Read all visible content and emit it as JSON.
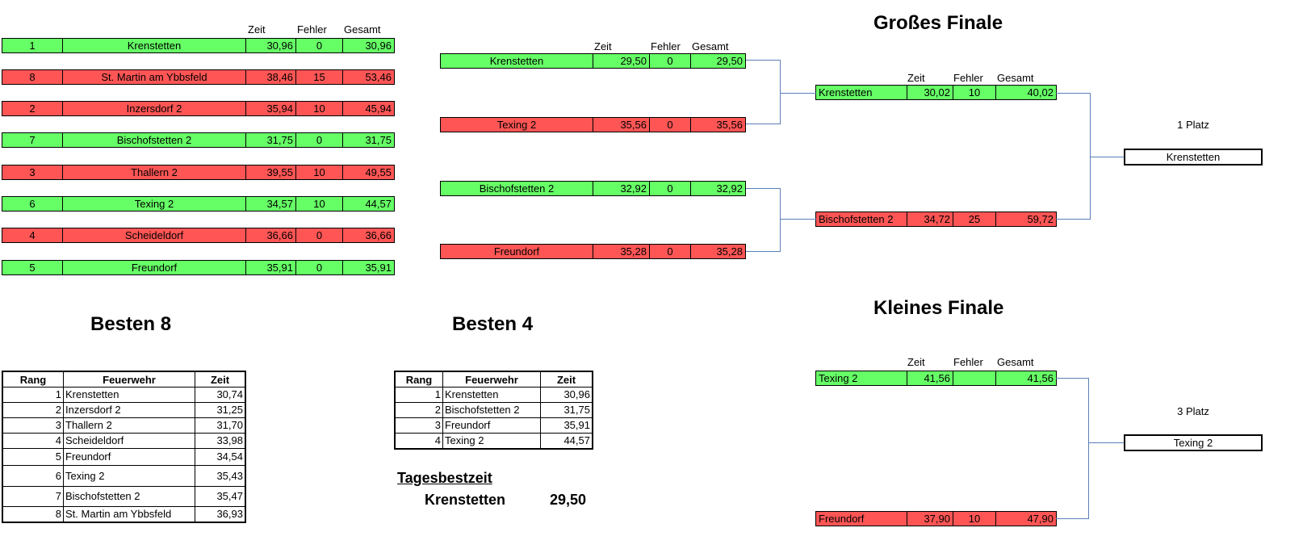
{
  "headers": {
    "zeit": "Zeit",
    "fehler": "Fehler",
    "gesamt": "Gesamt"
  },
  "round1": [
    {
      "seed": "1",
      "team": "Krenstetten",
      "zeit": "30,96",
      "fehler": "0",
      "gesamt": "30,96",
      "status": "win"
    },
    {
      "seed": "8",
      "team": "St. Martin am Ybbsfeld",
      "zeit": "38,46",
      "fehler": "15",
      "gesamt": "53,46",
      "status": "lose"
    },
    {
      "seed": "2",
      "team": "Inzersdorf 2",
      "zeit": "35,94",
      "fehler": "10",
      "gesamt": "45,94",
      "status": "lose"
    },
    {
      "seed": "7",
      "team": "Bischofstetten 2",
      "zeit": "31,75",
      "fehler": "0",
      "gesamt": "31,75",
      "status": "win"
    },
    {
      "seed": "3",
      "team": "Thallern 2",
      "zeit": "39,55",
      "fehler": "10",
      "gesamt": "49,55",
      "status": "lose"
    },
    {
      "seed": "6",
      "team": "Texing 2",
      "zeit": "34,57",
      "fehler": "10",
      "gesamt": "44,57",
      "status": "win"
    },
    {
      "seed": "4",
      "team": "Scheideldorf",
      "zeit": "36,66",
      "fehler": "0",
      "gesamt": "36,66",
      "status": "lose"
    },
    {
      "seed": "5",
      "team": "Freundorf",
      "zeit": "35,91",
      "fehler": "0",
      "gesamt": "35,91",
      "status": "win"
    }
  ],
  "semis": [
    {
      "team": "Krenstetten",
      "zeit": "29,50",
      "fehler": "0",
      "gesamt": "29,50",
      "status": "win"
    },
    {
      "team": "Texing 2",
      "zeit": "35,56",
      "fehler": "0",
      "gesamt": "35,56",
      "status": "lose"
    },
    {
      "team": "Bischofstetten 2",
      "zeit": "32,92",
      "fehler": "0",
      "gesamt": "32,92",
      "status": "win"
    },
    {
      "team": "Freundorf",
      "zeit": "35,28",
      "fehler": "0",
      "gesamt": "35,28",
      "status": "lose"
    }
  ],
  "grosses_finale": {
    "title": "Großes Finale",
    "entries": [
      {
        "team": "Krenstetten",
        "zeit": "30,02",
        "fehler": "10",
        "gesamt": "40,02",
        "status": "win"
      },
      {
        "team": "Bischofstetten 2",
        "zeit": "34,72",
        "fehler": "25",
        "gesamt": "59,72",
        "status": "lose"
      }
    ],
    "place_label": "1 Platz",
    "winner": "Krenstetten"
  },
  "kleines_finale": {
    "title": "Kleines Finale",
    "entries": [
      {
        "team": "Texing 2",
        "zeit": "41,56",
        "fehler": "",
        "gesamt": "41,56",
        "status": "win"
      },
      {
        "team": "Freundorf",
        "zeit": "37,90",
        "fehler": "10",
        "gesamt": "47,90",
        "status": "lose"
      }
    ],
    "place_label": "3 Platz",
    "winner": "Texing 2"
  },
  "besten8": {
    "title": "Besten 8",
    "columns": [
      "Rang",
      "Feuerwehr",
      "Zeit"
    ],
    "rows": [
      [
        "1",
        "Krenstetten",
        "30,74"
      ],
      [
        "2",
        "Inzersdorf 2",
        "31,25"
      ],
      [
        "3",
        "Thallern 2",
        "31,70"
      ],
      [
        "4",
        "Scheideldorf",
        "33,98"
      ],
      [
        "5",
        "Freundorf",
        "34,54"
      ],
      [
        "6",
        "Texing 2",
        "35,43"
      ],
      [
        "7",
        "Bischofstetten 2",
        "35,47"
      ],
      [
        "8",
        "St. Martin am Ybbsfeld",
        "36,93"
      ]
    ]
  },
  "besten4": {
    "title": "Besten 4",
    "columns": [
      "Rang",
      "Feuerwehr",
      "Zeit"
    ],
    "rows": [
      [
        "1",
        "Krenstetten",
        "30,96"
      ],
      [
        "2",
        "Bischofstetten 2",
        "31,75"
      ],
      [
        "3",
        "Freundorf",
        "35,91"
      ],
      [
        "4",
        "Texing 2",
        "44,57"
      ]
    ]
  },
  "tagesbestzeit": {
    "label": "Tagesbestzeit",
    "team": "Krenstetten",
    "zeit": "29,50"
  },
  "colors": {
    "win": "#66ff66",
    "lose": "#ff5555",
    "connector": "#5b80b8"
  }
}
